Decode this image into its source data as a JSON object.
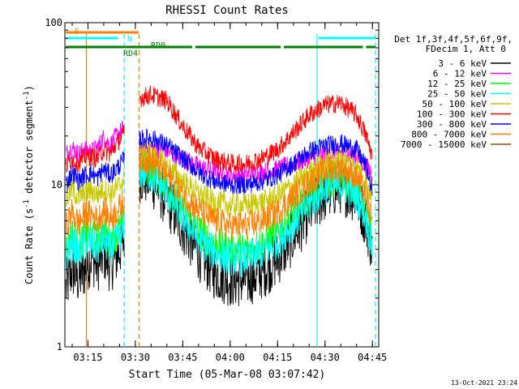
{
  "chart_data": {
    "type": "line",
    "title": "RHESSI Count Rates",
    "xlabel": "Start Time (05-Mar-08 03:07:42)",
    "ylabel": "Count Rate (s⁻¹ detector segment⁻¹)",
    "ylabel_main": "Count Rate (s",
    "ylabel_sup1": "-1",
    "ylabel_mid": " detector segment",
    "ylabel_sup2": "-1",
    "ylabel_end": ")",
    "y_scale": "log",
    "ylim": [
      1,
      100
    ],
    "xlim": [
      "03:07:42",
      "04:47:00"
    ],
    "y_ticks": [
      {
        "value": 1,
        "label": "1"
      },
      {
        "value": 10,
        "label": "10"
      },
      {
        "value": 100,
        "label": "100"
      }
    ],
    "x_ticks": [
      "03:15",
      "03:30",
      "03:45",
      "04:00",
      "04:15",
      "04:30",
      "04:45"
    ],
    "legend_position": "right",
    "legend_header": [
      "Det 1f,3f,4f,5f,6f,9f,",
      "FDecim 1, Att 0"
    ],
    "data_gaps": [
      [
        "03:26:30",
        "03:31:10"
      ]
    ],
    "series": [
      {
        "name": "3 - 6 keV",
        "color": "#000000",
        "points": [
          [
            "03:08",
            2.3
          ],
          [
            "03:10",
            3.0
          ],
          [
            "03:12",
            2.6
          ],
          [
            "03:14",
            3.0
          ],
          [
            "03:16",
            3.6
          ],
          [
            "03:18",
            3.2
          ],
          [
            "03:20",
            3.8
          ],
          [
            "03:22",
            3.2
          ],
          [
            "03:24",
            3.6
          ],
          [
            "03:26",
            4.4
          ],
          [
            "03:31",
            11.5
          ],
          [
            "03:35",
            10.8
          ],
          [
            "03:40",
            8.0
          ],
          [
            "03:45",
            5.5
          ],
          [
            "03:50",
            3.8
          ],
          [
            "03:55",
            2.9
          ],
          [
            "04:00",
            2.6
          ],
          [
            "04:05",
            2.6
          ],
          [
            "04:10",
            2.9
          ],
          [
            "04:15",
            3.5
          ],
          [
            "04:20",
            4.8
          ],
          [
            "04:25",
            6.8
          ],
          [
            "04:30",
            8.8
          ],
          [
            "04:35",
            9.8
          ],
          [
            "04:40",
            8.5
          ],
          [
            "04:43",
            6.0
          ],
          [
            "04:45",
            4.0
          ]
        ]
      },
      {
        "name": "6 - 12 keV",
        "color": "#ff00ff",
        "points": [
          [
            "03:08",
            15.5
          ],
          [
            "03:10",
            17.0
          ],
          [
            "03:12",
            15.5
          ],
          [
            "03:14",
            16.5
          ],
          [
            "03:16",
            16.0
          ],
          [
            "03:18",
            17.0
          ],
          [
            "03:20",
            19.5
          ],
          [
            "03:22",
            17.5
          ],
          [
            "03:24",
            20.0
          ],
          [
            "03:26",
            22.0
          ],
          [
            "03:31",
            17.0
          ],
          [
            "03:35",
            17.0
          ],
          [
            "03:40",
            16.0
          ],
          [
            "03:45",
            14.5
          ],
          [
            "03:50",
            13.0
          ],
          [
            "03:55",
            12.0
          ],
          [
            "04:00",
            11.5
          ],
          [
            "04:05",
            11.5
          ],
          [
            "04:10",
            12.0
          ],
          [
            "04:15",
            12.5
          ],
          [
            "04:20",
            13.5
          ],
          [
            "04:25",
            14.5
          ],
          [
            "04:30",
            15.5
          ],
          [
            "04:35",
            16.0
          ],
          [
            "04:40",
            15.0
          ],
          [
            "04:43",
            13.0
          ],
          [
            "04:45",
            12.0
          ]
        ]
      },
      {
        "name": "12 - 25 keV",
        "color": "#00ff00",
        "points": [
          [
            "03:08",
            4.0
          ],
          [
            "03:10",
            5.0
          ],
          [
            "03:12",
            4.2
          ],
          [
            "03:14",
            4.8
          ],
          [
            "03:16",
            4.9
          ],
          [
            "03:18",
            4.5
          ],
          [
            "03:20",
            5.2
          ],
          [
            "03:22",
            4.5
          ],
          [
            "03:24",
            5.0
          ],
          [
            "03:26",
            5.6
          ],
          [
            "03:31",
            13.0
          ],
          [
            "03:35",
            12.5
          ],
          [
            "03:40",
            10.0
          ],
          [
            "03:45",
            7.0
          ],
          [
            "03:50",
            5.2
          ],
          [
            "03:55",
            4.3
          ],
          [
            "04:00",
            4.0
          ],
          [
            "04:05",
            4.0
          ],
          [
            "04:10",
            4.3
          ],
          [
            "04:15",
            5.0
          ],
          [
            "04:20",
            6.5
          ],
          [
            "04:25",
            8.5
          ],
          [
            "04:30",
            10.5
          ],
          [
            "04:35",
            11.0
          ],
          [
            "04:40",
            9.5
          ],
          [
            "04:43",
            7.0
          ],
          [
            "04:45",
            4.5
          ]
        ]
      },
      {
        "name": "25 - 50 keV",
        "color": "#00ffff",
        "points": [
          [
            "03:08",
            3.6
          ],
          [
            "03:10",
            4.4
          ],
          [
            "03:12",
            3.8
          ],
          [
            "03:14",
            4.3
          ],
          [
            "03:16",
            4.4
          ],
          [
            "03:18",
            4.0
          ],
          [
            "03:20",
            4.6
          ],
          [
            "03:22",
            4.0
          ],
          [
            "03:24",
            4.5
          ],
          [
            "03:26",
            5.0
          ],
          [
            "03:31",
            12.0
          ],
          [
            "03:35",
            11.5
          ],
          [
            "03:40",
            9.0
          ],
          [
            "03:45",
            6.3
          ],
          [
            "03:50",
            4.6
          ],
          [
            "03:55",
            3.8
          ],
          [
            "04:00",
            3.5
          ],
          [
            "04:05",
            3.5
          ],
          [
            "04:10",
            3.8
          ],
          [
            "04:15",
            4.4
          ],
          [
            "04:20",
            5.8
          ],
          [
            "04:25",
            7.6
          ],
          [
            "04:30",
            9.5
          ],
          [
            "04:35",
            10.0
          ],
          [
            "04:40",
            8.6
          ],
          [
            "04:43",
            6.3
          ],
          [
            "04:45",
            4.0
          ]
        ]
      },
      {
        "name": "50 - 100 keV",
        "color": "#c8c800",
        "points": [
          [
            "03:08",
            8.0
          ],
          [
            "03:10",
            9.5
          ],
          [
            "03:12",
            8.3
          ],
          [
            "03:14",
            9.0
          ],
          [
            "03:16",
            9.2
          ],
          [
            "03:18",
            8.7
          ],
          [
            "03:20",
            9.6
          ],
          [
            "03:22",
            8.8
          ],
          [
            "03:24",
            9.5
          ],
          [
            "03:26",
            10.5
          ],
          [
            "03:31",
            16.0
          ],
          [
            "03:35",
            15.5
          ],
          [
            "03:40",
            13.0
          ],
          [
            "03:45",
            10.5
          ],
          [
            "03:50",
            8.8
          ],
          [
            "03:55",
            7.8
          ],
          [
            "04:00",
            7.5
          ],
          [
            "04:05",
            7.5
          ],
          [
            "04:10",
            7.8
          ],
          [
            "04:15",
            8.6
          ],
          [
            "04:20",
            10.0
          ],
          [
            "04:25",
            12.0
          ],
          [
            "04:30",
            13.8
          ],
          [
            "04:35",
            14.5
          ],
          [
            "04:40",
            13.0
          ],
          [
            "04:43",
            10.5
          ],
          [
            "04:45",
            8.5
          ]
        ]
      },
      {
        "name": "100 - 300 keV",
        "color": "#ff0000",
        "points": [
          [
            "03:08",
            13.0
          ],
          [
            "03:10",
            14.5
          ],
          [
            "03:12",
            13.5
          ],
          [
            "03:14",
            15.0
          ],
          [
            "03:16",
            15.0
          ],
          [
            "03:18",
            14.5
          ],
          [
            "03:20",
            16.5
          ],
          [
            "03:22",
            15.5
          ],
          [
            "03:24",
            18.0
          ],
          [
            "03:26",
            20.0
          ],
          [
            "03:31",
            34.0
          ],
          [
            "03:35",
            36.0
          ],
          [
            "03:40",
            33.0
          ],
          [
            "03:45",
            23.0
          ],
          [
            "03:50",
            17.0
          ],
          [
            "03:55",
            14.5
          ],
          [
            "04:00",
            13.5
          ],
          [
            "04:05",
            13.5
          ],
          [
            "04:10",
            14.5
          ],
          [
            "04:15",
            16.5
          ],
          [
            "04:20",
            21.0
          ],
          [
            "04:25",
            27.0
          ],
          [
            "04:30",
            31.0
          ],
          [
            "04:35",
            32.0
          ],
          [
            "04:40",
            27.0
          ],
          [
            "04:43",
            20.0
          ],
          [
            "04:45",
            15.0
          ]
        ]
      },
      {
        "name": "300 - 800 keV",
        "color": "#0000ff",
        "points": [
          [
            "03:08",
            10.0
          ],
          [
            "03:10",
            12.0
          ],
          [
            "03:12",
            10.5
          ],
          [
            "03:14",
            11.5
          ],
          [
            "03:16",
            11.8
          ],
          [
            "03:18",
            11.0
          ],
          [
            "03:20",
            12.5
          ],
          [
            "03:22",
            11.5
          ],
          [
            "03:24",
            12.5
          ],
          [
            "03:26",
            14.0
          ],
          [
            "03:31",
            19.0
          ],
          [
            "03:35",
            19.5
          ],
          [
            "03:40",
            17.5
          ],
          [
            "03:45",
            14.5
          ],
          [
            "03:50",
            12.0
          ],
          [
            "03:55",
            10.5
          ],
          [
            "04:00",
            10.0
          ],
          [
            "04:05",
            10.0
          ],
          [
            "04:10",
            10.5
          ],
          [
            "04:15",
            11.5
          ],
          [
            "04:20",
            13.5
          ],
          [
            "04:25",
            16.0
          ],
          [
            "04:30",
            17.5
          ],
          [
            "04:35",
            18.0
          ],
          [
            "04:40",
            16.5
          ],
          [
            "04:43",
            13.0
          ],
          [
            "04:45",
            9.0
          ]
        ]
      },
      {
        "name": "800 - 7000 keV",
        "color": "#ff8000",
        "points": [
          [
            "03:08",
            5.5
          ],
          [
            "03:10",
            6.8
          ],
          [
            "03:12",
            5.8
          ],
          [
            "03:14",
            6.5
          ],
          [
            "03:16",
            6.6
          ],
          [
            "03:18",
            6.1
          ],
          [
            "03:20",
            7.0
          ],
          [
            "03:22",
            6.2
          ],
          [
            "03:24",
            6.8
          ],
          [
            "03:26",
            7.6
          ],
          [
            "03:31",
            14.5
          ],
          [
            "03:35",
            14.0
          ],
          [
            "03:40",
            11.5
          ],
          [
            "03:45",
            8.8
          ],
          [
            "03:50",
            7.0
          ],
          [
            "03:55",
            6.0
          ],
          [
            "04:00",
            5.6
          ],
          [
            "04:05",
            5.6
          ],
          [
            "04:10",
            6.0
          ],
          [
            "04:15",
            6.8
          ],
          [
            "04:20",
            8.4
          ],
          [
            "04:25",
            10.4
          ],
          [
            "04:30",
            12.2
          ],
          [
            "04:35",
            12.8
          ],
          [
            "04:40",
            11.2
          ],
          [
            "04:43",
            8.5
          ],
          [
            "04:45",
            5.8
          ]
        ]
      },
      {
        "name": "7000 - 15000 keV",
        "color": "#a05000",
        "points": []
      }
    ],
    "annotations": {
      "flags": [
        {
          "label": "S",
          "color": "#ff8000",
          "start": "03:08",
          "end": "03:24.5"
        },
        {
          "label": "N",
          "color": "#00ffff",
          "start": "03:08",
          "end": "03:24.5"
        },
        {
          "label": "RD4",
          "color": "#008000",
          "start": "03:08",
          "end": "03:27"
        },
        {
          "label": "RD0",
          "color": "#008000",
          "start": "03:27",
          "end": "03:48"
        }
      ],
      "flag_extra_segments": [
        {
          "color": "#ff8000",
          "start": "03:14.5",
          "end": "03:31"
        },
        {
          "color": "#00ffff",
          "start": "04:28",
          "end": "04:46"
        },
        {
          "color": "#008000",
          "start": "03:49",
          "end": "04:16"
        },
        {
          "color": "#008000",
          "start": "04:17",
          "end": "04:42"
        },
        {
          "color": "#008000",
          "start": "04:43",
          "end": "04:46"
        }
      ],
      "vlines": [
        {
          "time": "03:14.5",
          "color": "#ff8000",
          "dashed": false
        },
        {
          "time": "03:26.5",
          "color": "#00ffff",
          "dashed": true
        },
        {
          "time": "03:31.2",
          "color": "#ff8000",
          "dashed": true
        },
        {
          "time": "04:27.5",
          "color": "#00ffff",
          "dashed": false
        },
        {
          "time": "04:46",
          "color": "#00ffff",
          "dashed": true
        }
      ]
    },
    "footer_date": "13-Oct-2021 23:24"
  }
}
